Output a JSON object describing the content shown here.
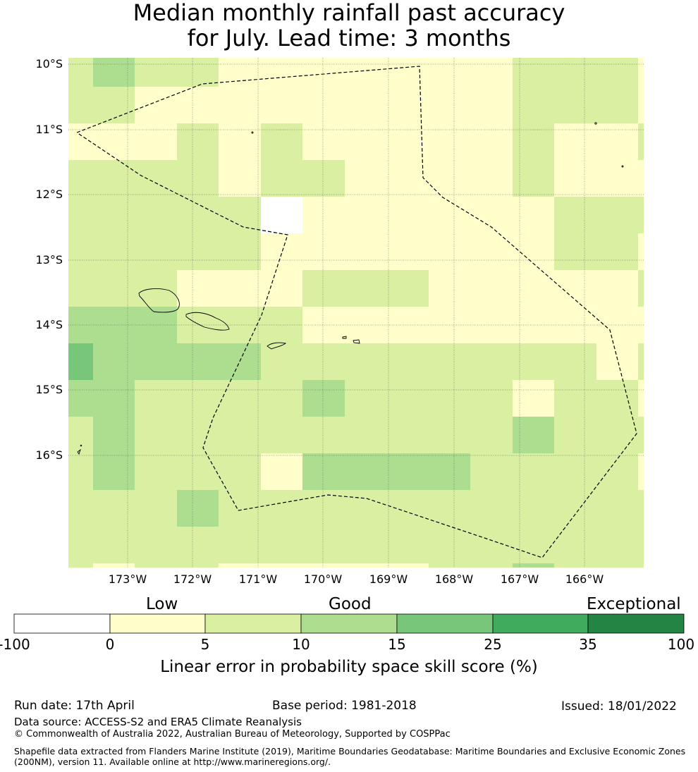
{
  "title": {
    "line1": "Median monthly rainfall past accuracy",
    "line2": "for July. Lead time: 3 months"
  },
  "map": {
    "lat_labels": [
      "10°S",
      "11°S",
      "12°S",
      "13°S",
      "14°S",
      "15°S",
      "16°S"
    ],
    "lon_labels": [
      "173°W",
      "172°W",
      "171°W",
      "170°W",
      "169°W",
      "168°W",
      "167°W",
      "166°W"
    ],
    "skill_grid_bins": [
      [
        2,
        3,
        2,
        2,
        1,
        1,
        1,
        1,
        1,
        1,
        1,
        2,
        2,
        2,
        1
      ],
      [
        2,
        2,
        1,
        1,
        1,
        1,
        1,
        1,
        1,
        1,
        1,
        2,
        2,
        2,
        1
      ],
      [
        1,
        1,
        1,
        2,
        1,
        2,
        1,
        1,
        1,
        1,
        1,
        2,
        1,
        1,
        2
      ],
      [
        2,
        2,
        2,
        2,
        1,
        2,
        2,
        1,
        1,
        1,
        1,
        2,
        1,
        1,
        1
      ],
      [
        2,
        2,
        2,
        2,
        2,
        0,
        1,
        1,
        1,
        1,
        1,
        1,
        2,
        2,
        2
      ],
      [
        2,
        2,
        2,
        2,
        2,
        1,
        1,
        1,
        1,
        1,
        1,
        1,
        2,
        2,
        1
      ],
      [
        2,
        2,
        2,
        1,
        1,
        1,
        2,
        2,
        2,
        1,
        1,
        1,
        1,
        1,
        2
      ],
      [
        3,
        3,
        3,
        2,
        2,
        2,
        1,
        1,
        1,
        1,
        1,
        1,
        1,
        1,
        1
      ],
      [
        4,
        3,
        3,
        3,
        3,
        2,
        2,
        2,
        2,
        2,
        2,
        2,
        2,
        1,
        2
      ],
      [
        3,
        3,
        2,
        2,
        2,
        2,
        3,
        2,
        2,
        2,
        2,
        1,
        2,
        2,
        1
      ],
      [
        2,
        3,
        2,
        2,
        2,
        2,
        2,
        2,
        2,
        2,
        2,
        3,
        2,
        2,
        2
      ],
      [
        2,
        3,
        2,
        2,
        2,
        1,
        3,
        3,
        3,
        3,
        2,
        2,
        2,
        2,
        1
      ],
      [
        2,
        2,
        2,
        3,
        2,
        2,
        2,
        2,
        2,
        2,
        2,
        2,
        2,
        2,
        2
      ],
      [
        2,
        2,
        2,
        2,
        2,
        2,
        2,
        2,
        2,
        2,
        2,
        2,
        2,
        2,
        2
      ],
      [
        2,
        1,
        2,
        2,
        1,
        1,
        1,
        1,
        1,
        2,
        2,
        3,
        2,
        2,
        2
      ]
    ]
  },
  "colorbar": {
    "categories": [
      "Low",
      "Good",
      "Exceptional"
    ],
    "ticks": [
      "-100",
      "0",
      "5",
      "10",
      "15",
      "25",
      "35",
      "100"
    ],
    "colors": [
      "#ffffff",
      "#ffffcc",
      "#d9f0a3",
      "#addd8e",
      "#78c679",
      "#41ab5d",
      "#238443"
    ],
    "label": "Linear error in probability space skill score (%)"
  },
  "footer": {
    "run_date": "Run date: 17th April",
    "base_period": "Base period: 1981-2018",
    "issued": "Issued: 18/01/2022",
    "data_source": "Data source: ACCESS-S2 and ERA5 Climate Reanalysis",
    "copyright": "© Commonwealth of Australia 2022, Australian Bureau of Meteorology, Supported by COSPPac",
    "shapefile_line1": "Shapefile data extracted from Flanders Marine Institute (2019), Maritime Boundaries Geodatabase: Maritime Boundaries and Exclusive Economic Zones",
    "shapefile_line2": "(200NM), version 11. Available online at http://www.marineregions.org/."
  }
}
